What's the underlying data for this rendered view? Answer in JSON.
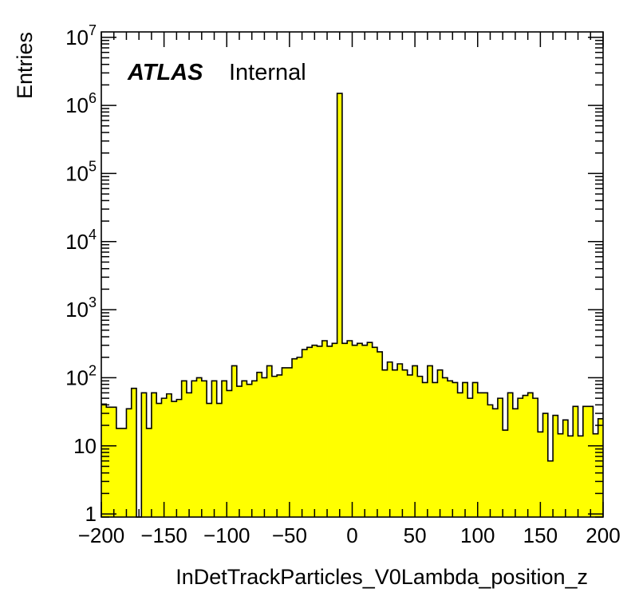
{
  "chart_data": {
    "type": "histogram",
    "xlabel": "InDetTrackParticles_V0Lambda_position_z",
    "ylabel": "Entries",
    "label_bold": "ATLAS",
    "label_rest": "Internal",
    "xlim": [
      -200,
      200
    ],
    "ylim": [
      0.9,
      12000000
    ],
    "yscale": "log",
    "bin_width": 4,
    "x_ticks": [
      {
        "value": -200,
        "label": "−200"
      },
      {
        "value": -150,
        "label": "−150"
      },
      {
        "value": -100,
        "label": "−100"
      },
      {
        "value": -50,
        "label": "−50"
      },
      {
        "value": 0,
        "label": "0"
      },
      {
        "value": 50,
        "label": "50"
      },
      {
        "value": 100,
        "label": "100"
      },
      {
        "value": 150,
        "label": "150"
      },
      {
        "value": 200,
        "label": "200"
      }
    ],
    "y_ticks": [
      {
        "value": 1,
        "base": "1",
        "exp": ""
      },
      {
        "value": 10,
        "base": "10",
        "exp": ""
      },
      {
        "value": 100,
        "base": "10",
        "exp": "2"
      },
      {
        "value": 1000,
        "base": "10",
        "exp": "3"
      },
      {
        "value": 10000,
        "base": "10",
        "exp": "4"
      },
      {
        "value": 100000,
        "base": "10",
        "exp": "5"
      },
      {
        "value": 1000000,
        "base": "10",
        "exp": "6"
      },
      {
        "value": 10000000,
        "base": "10",
        "exp": "7"
      }
    ],
    "fill_color": "#ffff00",
    "line_color": "#000000",
    "bin_edges_start": -200,
    "bin_contents": [
      41,
      37,
      37,
      18,
      18,
      35,
      70,
      0.8,
      60,
      18,
      60,
      42,
      50,
      58,
      45,
      48,
      90,
      60,
      90,
      100,
      90,
      42,
      90,
      42,
      90,
      65,
      150,
      75,
      90,
      80,
      90,
      120,
      100,
      150,
      105,
      110,
      140,
      140,
      190,
      200,
      260,
      280,
      300,
      290,
      350,
      290,
      320,
      1500000,
      320,
      350,
      300,
      320,
      300,
      330,
      280,
      240,
      130,
      170,
      130,
      160,
      130,
      110,
      150,
      105,
      85,
      150,
      85,
      130,
      100,
      90,
      85,
      60,
      85,
      50,
      85,
      60,
      60,
      40,
      35,
      50,
      17,
      60,
      35,
      50,
      55,
      60,
      50,
      16,
      30,
      6,
      28,
      15,
      24,
      14,
      38,
      14,
      38,
      38,
      15,
      25
    ]
  }
}
